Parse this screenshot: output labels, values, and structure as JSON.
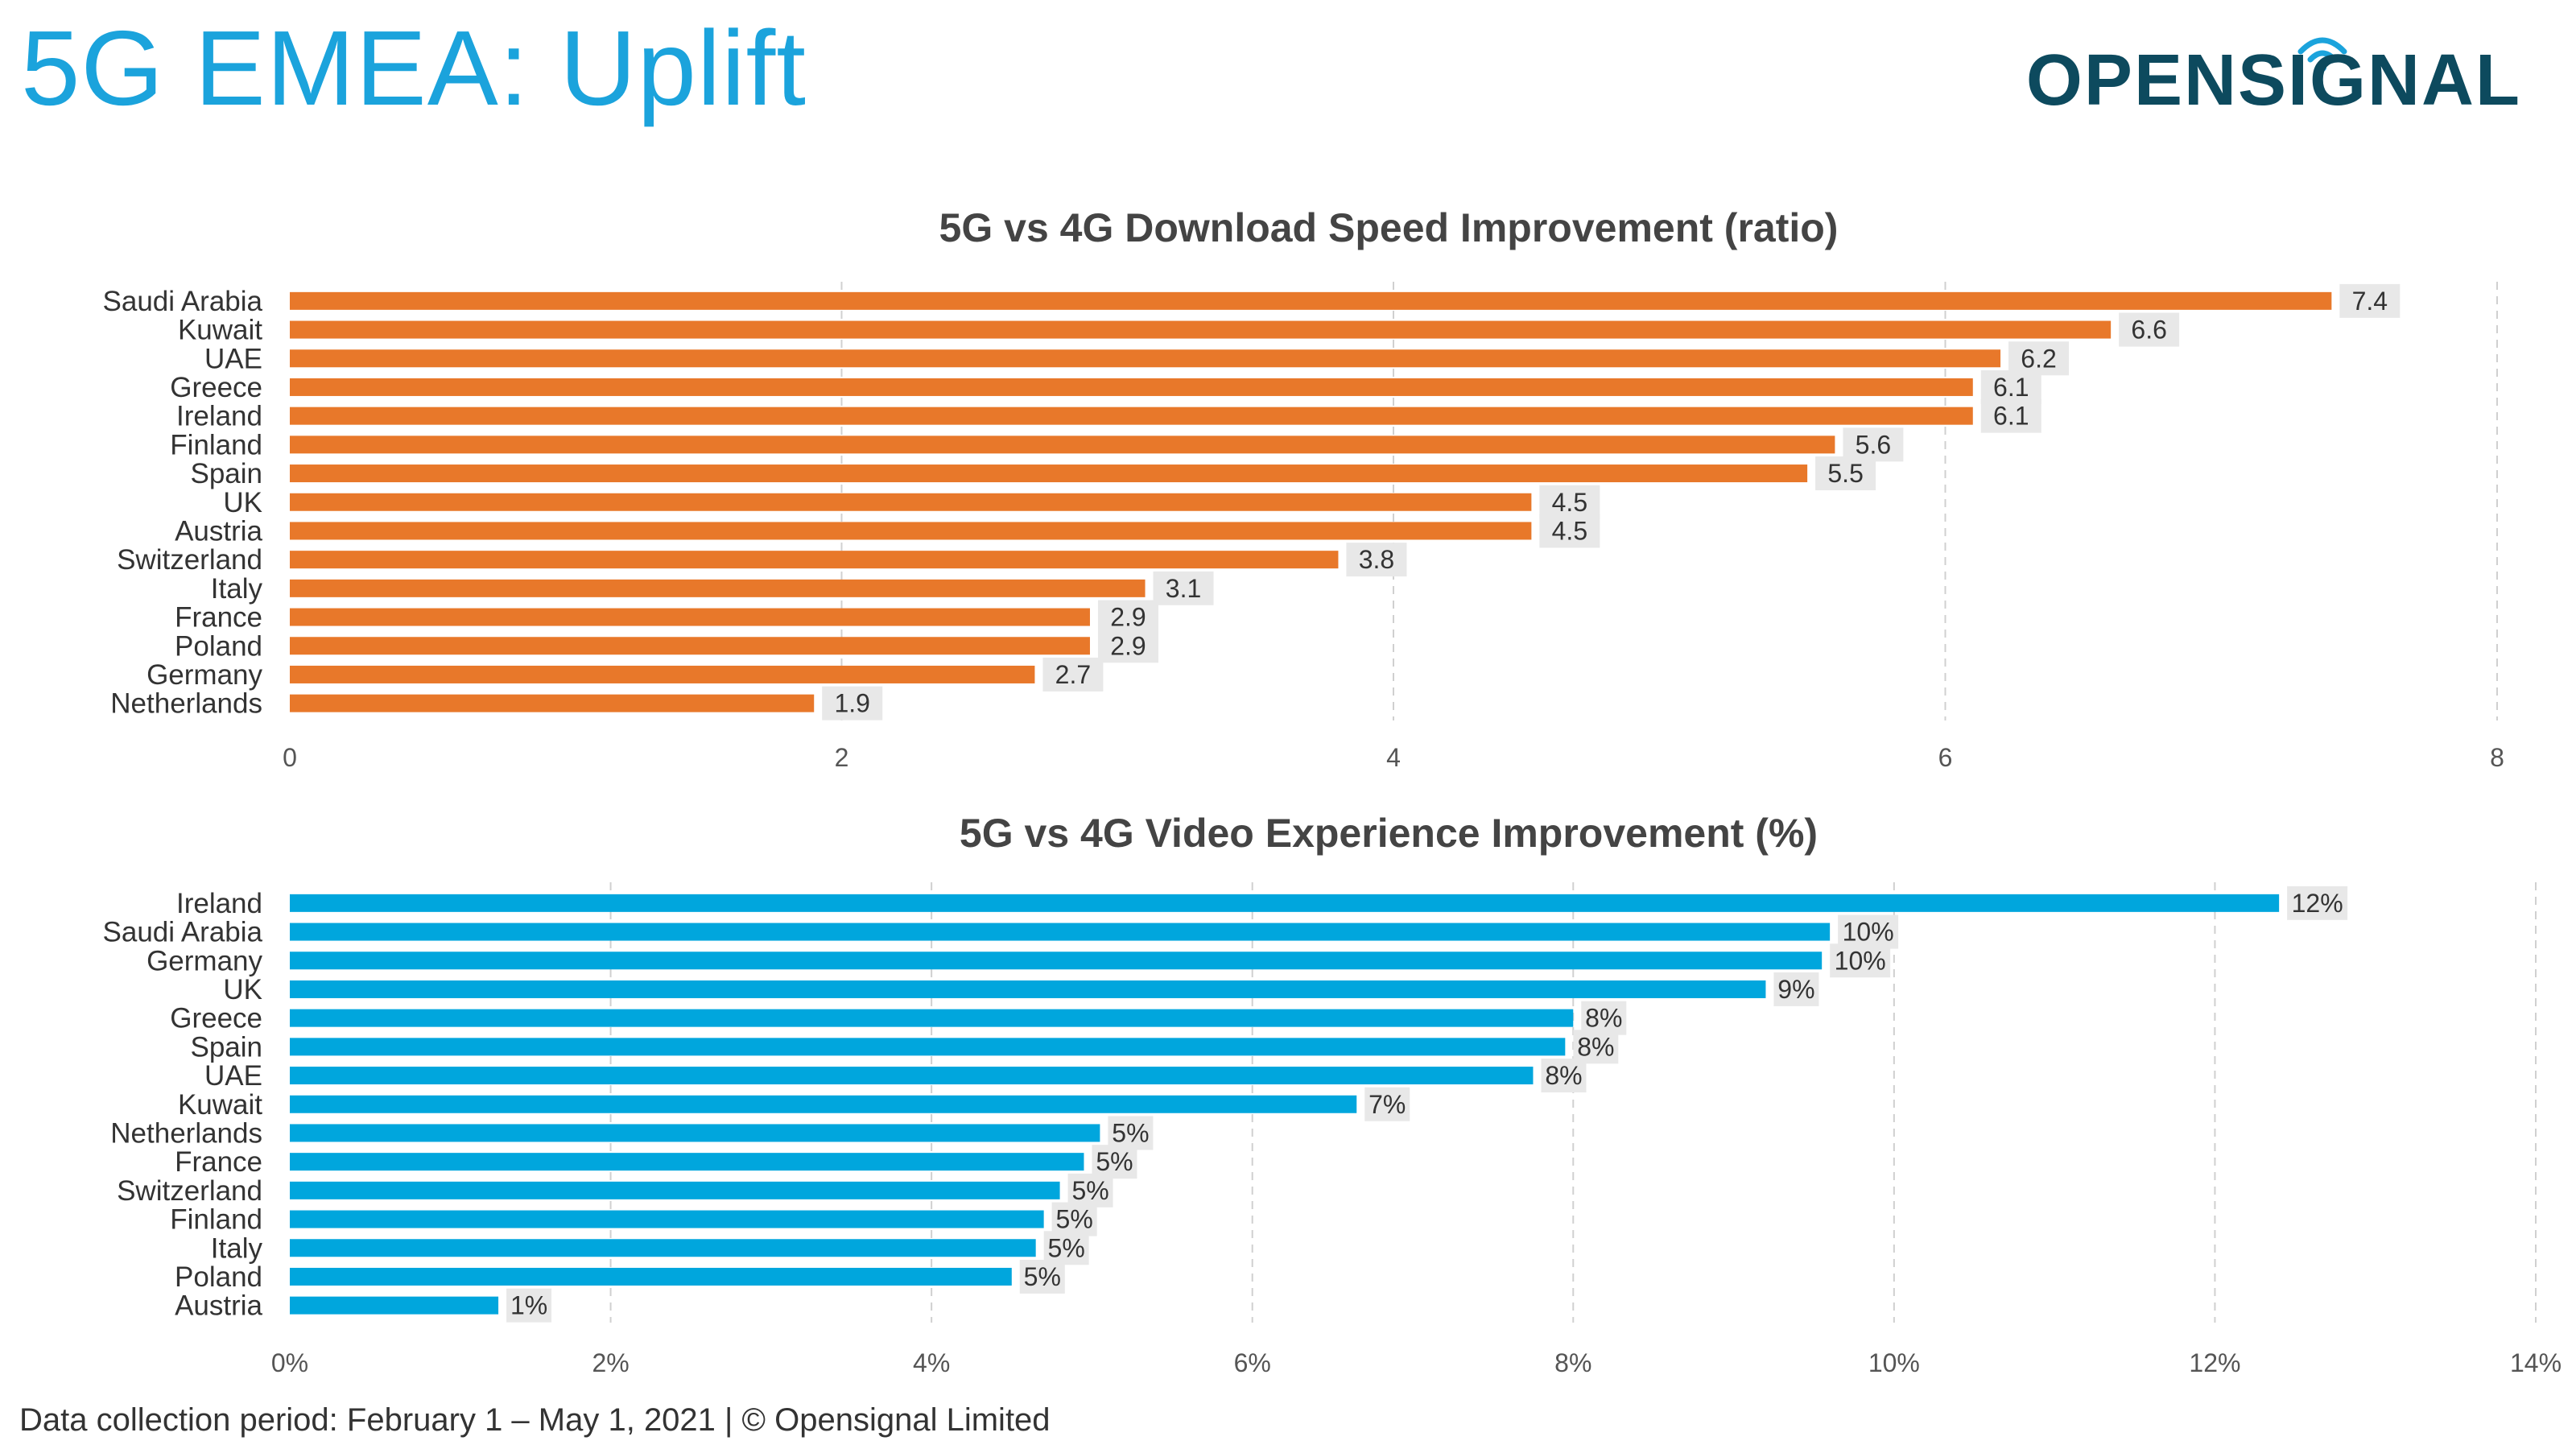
{
  "page": {
    "title": "5G EMEA: Uplift",
    "logo_text": "OPENSIGNAL",
    "footer": "Data collection period: February 1 – May 1, 2021  |  © Opensignal Limited"
  },
  "colors": {
    "title": "#1ba3dc",
    "logo": "#0d4a5e",
    "logo_accent": "#1ba3dc",
    "download_bar": "#e8782a",
    "video_bar": "#00a6dd",
    "label_bg": "#e8e8e8"
  },
  "chart_data": [
    {
      "type": "bar",
      "orientation": "horizontal",
      "title": "5G vs 4G Download Speed Improvement (ratio)",
      "categories": [
        "Saudi Arabia",
        "Kuwait",
        "UAE",
        "Greece",
        "Ireland",
        "Finland",
        "Spain",
        "UK",
        "Austria",
        "Switzerland",
        "Italy",
        "France",
        "Poland",
        "Germany",
        "Netherlands"
      ],
      "values": [
        7.4,
        6.6,
        6.2,
        6.1,
        6.1,
        5.6,
        5.5,
        4.5,
        4.5,
        3.8,
        3.1,
        2.9,
        2.9,
        2.7,
        1.9
      ],
      "data_labels": [
        "7.4",
        "6.6",
        "6.2",
        "6.1",
        "6.1",
        "5.6",
        "5.5",
        "4.5",
        "4.5",
        "3.8",
        "3.1",
        "2.9",
        "2.9",
        "2.7",
        "1.9"
      ],
      "xlim": [
        0,
        8
      ],
      "xticks": [
        0,
        2,
        4,
        6,
        8
      ],
      "xtick_labels": [
        "0",
        "2",
        "4",
        "6",
        "8"
      ],
      "grid": true,
      "legend": false
    },
    {
      "type": "bar",
      "orientation": "horizontal",
      "title": "5G vs 4G Video Experience Improvement (%)",
      "categories": [
        "Ireland",
        "Saudi Arabia",
        "Germany",
        "UK",
        "Greece",
        "Spain",
        "UAE",
        "Kuwait",
        "Netherlands",
        "France",
        "Switzerland",
        "Finland",
        "Italy",
        "Poland",
        "Austria"
      ],
      "values": [
        12.4,
        9.6,
        9.55,
        9.2,
        8.0,
        7.95,
        7.75,
        6.65,
        5.05,
        4.95,
        4.8,
        4.7,
        4.65,
        4.5,
        1.3
      ],
      "data_labels": [
        "12%",
        "10%",
        "10%",
        "9%",
        "8%",
        "8%",
        "8%",
        "7%",
        "5%",
        "5%",
        "5%",
        "5%",
        "5%",
        "5%",
        "1%"
      ],
      "xlim": [
        0,
        14
      ],
      "xticks": [
        0,
        2,
        4,
        6,
        8,
        10,
        12,
        14
      ],
      "xtick_labels": [
        "0%",
        "2%",
        "4%",
        "6%",
        "8%",
        "10%",
        "12%",
        "14%"
      ],
      "grid": true,
      "legend": false
    }
  ]
}
